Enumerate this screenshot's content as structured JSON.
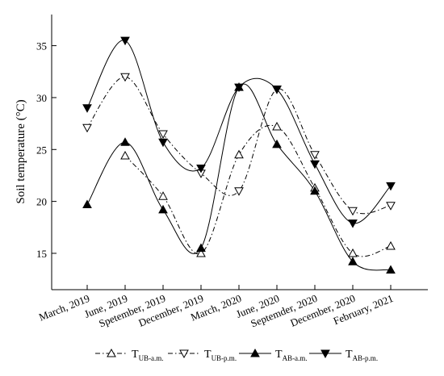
{
  "chart_data": {
    "type": "line",
    "xlabel": "",
    "ylabel": "Soil temperature (°C)",
    "ylim": [
      11.5,
      38
    ],
    "yticks": [
      15,
      20,
      25,
      30,
      35
    ],
    "categories": [
      "March, 2019",
      "June, 2019",
      "Spetember, 2019",
      "December, 2019",
      "March, 2020",
      "June, 2020",
      "Septemder, 2020",
      "December, 2020",
      "February, 2021"
    ],
    "grid": false,
    "legend_position": "bottom",
    "series": [
      {
        "name": "T",
        "subscript": "UB-a.m.",
        "marker": "triangle-up-open",
        "line_style": "dash-dot",
        "color": "#000000",
        "values": [
          null,
          24.4,
          20.5,
          15.0,
          24.5,
          27.2,
          21.3,
          15.0,
          15.7
        ]
      },
      {
        "name": "T",
        "subscript": "UB-p.m.",
        "marker": "triangle-down-open",
        "line_style": "dash-dot",
        "color": "#000000",
        "values": [
          27.1,
          32.0,
          26.5,
          22.7,
          21.0,
          30.8,
          24.5,
          19.1,
          19.6
        ]
      },
      {
        "name": "T",
        "subscript": "AB-a.m.",
        "marker": "triangle-up-filled",
        "line_style": "solid",
        "color": "#000000",
        "values": [
          19.7,
          25.7,
          19.2,
          15.5,
          31.0,
          25.5,
          21.0,
          14.2,
          13.4
        ]
      },
      {
        "name": "T",
        "subscript": "AB-p.m.",
        "marker": "triangle-down-filled",
        "line_style": "solid",
        "color": "#000000",
        "values": [
          29.0,
          35.5,
          25.7,
          23.2,
          31.0,
          30.8,
          23.6,
          17.9,
          21.5
        ]
      }
    ]
  }
}
